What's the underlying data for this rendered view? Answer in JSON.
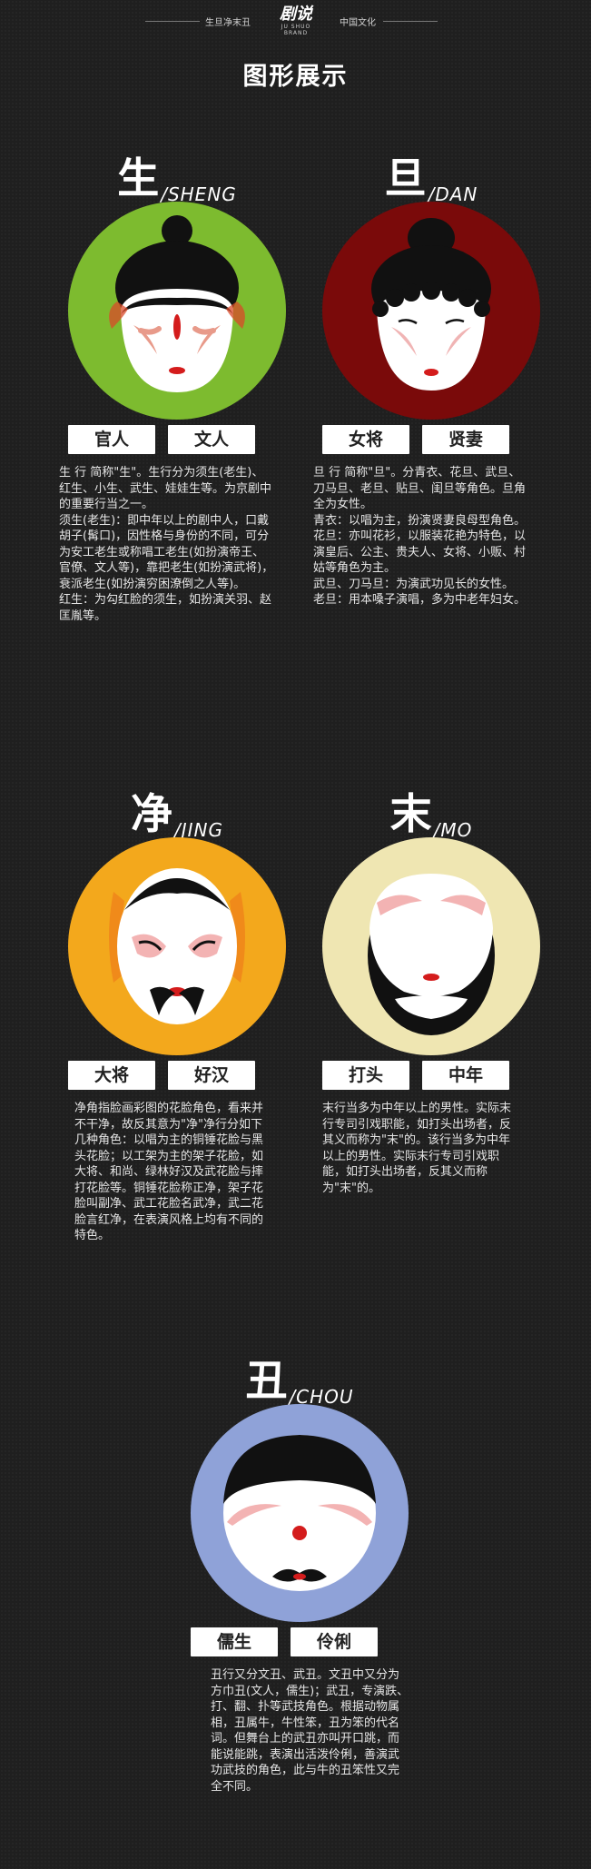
{
  "header": {
    "left_text": "生旦净末丑",
    "brand_cn": "剧说",
    "brand_en": "JU SHUO BRAND",
    "right_text": "中国文化"
  },
  "title": "图形展示",
  "colors": {
    "sheng": "#7dbb2f",
    "dan": "#7a0a0a",
    "jing": "#f3a81c",
    "mo": "#efe6b2",
    "chou": "#8fa2d8"
  },
  "roles": {
    "sheng": {
      "hanzi": "生",
      "pinyin": "/SHENG",
      "tags": [
        "官人",
        "文人"
      ],
      "desc": [
        "生 行 简称\"生\"。生行分为须生(老生)、红生、小生、武生、娃娃生等。为京剧中的重要行当之一。",
        "须生(老生)：即中年以上的剧中人，口戴胡子(髯口)，因性格与身份的不同，可分为安工老生或称唱工老生(如扮演帝王、官僚、文人等)，靠把老生(如扮演武将)，衰派老生(如扮演穷困潦倒之人等)。",
        "红生：为勾红脸的须生，如扮演关羽、赵匡胤等。"
      ]
    },
    "dan": {
      "hanzi": "旦",
      "pinyin": "/DAN",
      "tags": [
        "女将",
        "贤妻"
      ],
      "desc": [
        "旦 行 简称\"旦\"。分青衣、花旦、武旦、刀马旦、老旦、贴旦、闺旦等角色。旦角全为女性。",
        "青衣：以唱为主，扮演贤妻良母型角色。",
        "花旦：亦叫花衫，以服装花艳为特色，以演皇后、公主、贵夫人、女将、小贩、村姑等角色为主。",
        "武旦、刀马旦：为演武功见长的女性。",
        "老旦：用本嗓子演唱，多为中老年妇女。"
      ]
    },
    "jing": {
      "hanzi": "净",
      "pinyin": "/JING",
      "tags": [
        "大将",
        "好汉"
      ],
      "desc": [
        "净角指脸画彩图的花脸角色，看来并不干净，故反其意为\"净\"净行分如下几种角色：以唱为主的铜锤花脸与黑头花脸；以工架为主的架子花脸，如大将、和尚、绿林好汉及武花脸与摔打花脸等。铜锤花脸称正净，架子花脸叫副净、武工花脸名武净，武二花脸言红净，在表演风格上均有不同的特色。"
      ]
    },
    "mo": {
      "hanzi": "末",
      "pinyin": "/MO",
      "tags": [
        "打头",
        "中年"
      ],
      "desc": [
        "末行当多为中年以上的男性。实际末行专司引戏职能，如打头出场者，反其义而称为\"末\"的。该行当多为中年以上的男性。实际末行专司引戏职能，如打头出场者，反其义而称为\"末\"的。"
      ]
    },
    "chou": {
      "hanzi": "丑",
      "pinyin": "/CHOU",
      "tags": [
        "儒生",
        "伶俐"
      ],
      "desc": [
        "丑行又分文丑、武丑。文丑中又分为方巾丑(文人，儒生)；武丑，专演跌、打、翻、扑等武技角色。根据动物属相，丑属牛，牛性笨，丑为笨的代名词。但舞台上的武丑亦叫开口跳，而能说能跳，表演出活泼伶俐，善演武功武技的角色，此与牛的丑笨性又完全不同。"
      ]
    }
  }
}
